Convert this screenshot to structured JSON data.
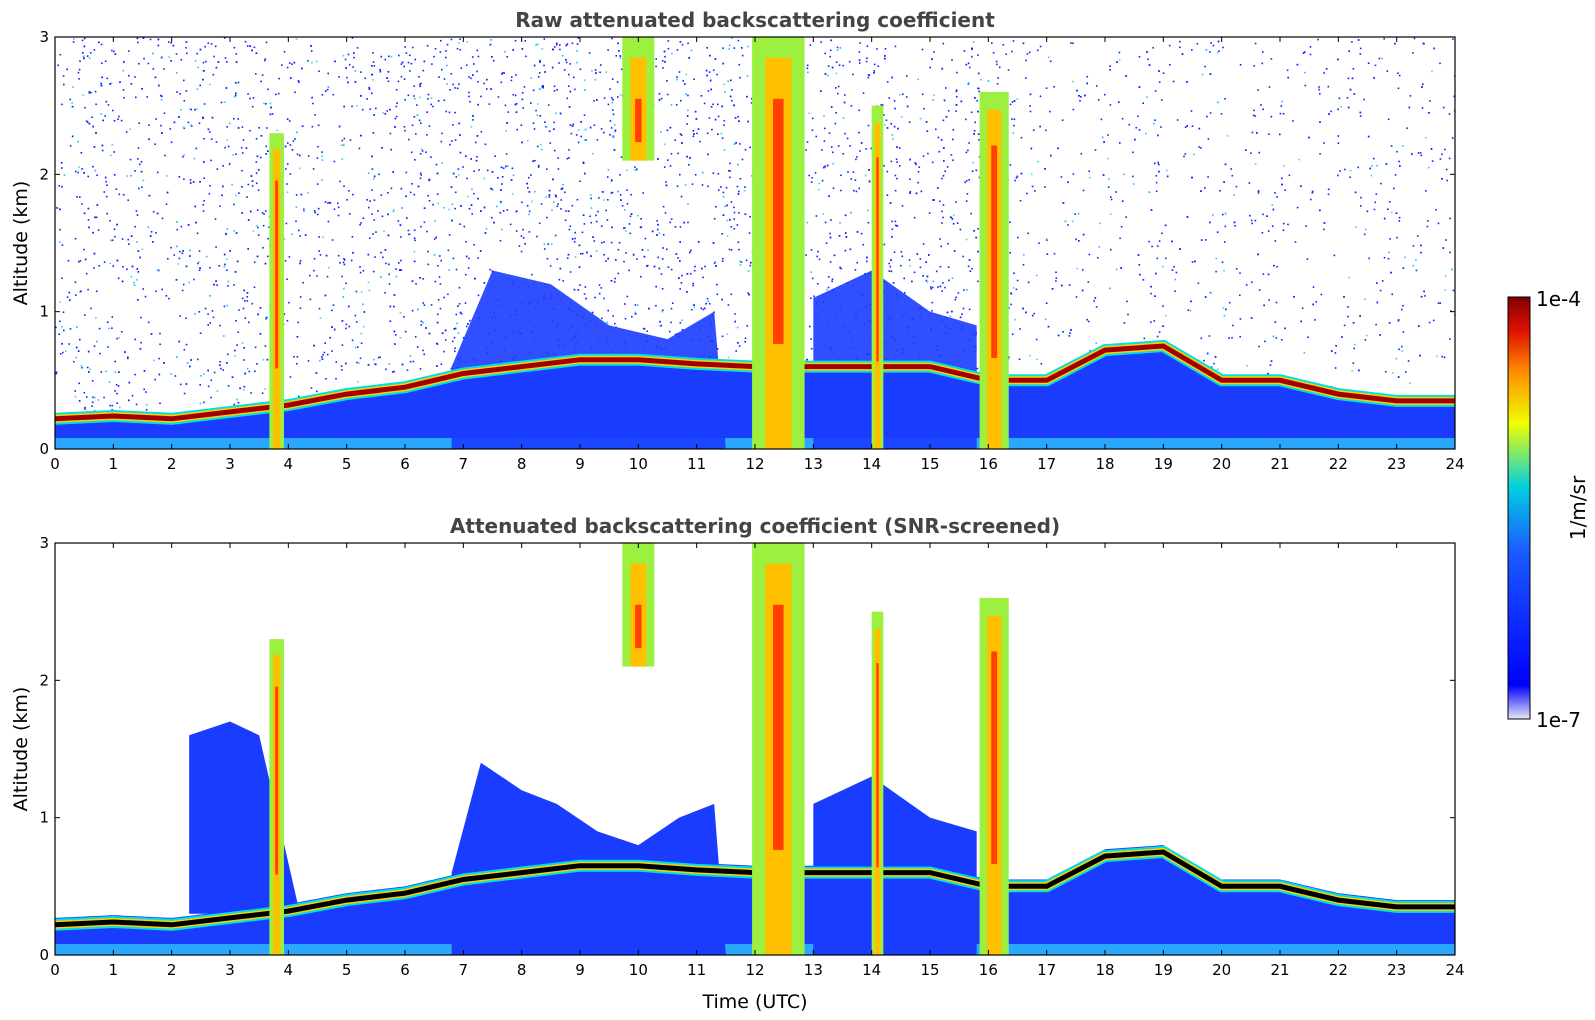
{
  "chart_data": [
    {
      "type": "heatmap",
      "title": "Raw attenuated backscattering coefficient",
      "xlabel": "",
      "ylabel": "Altitude (km)",
      "xlim": [
        0,
        24
      ],
      "ylim": [
        0,
        3
      ],
      "xticks": [
        "0",
        "1",
        "2",
        "3",
        "4",
        "5",
        "6",
        "7",
        "8",
        "9",
        "10",
        "11",
        "12",
        "13",
        "14",
        "15",
        "16",
        "17",
        "18",
        "19",
        "20",
        "21",
        "22",
        "23",
        "24"
      ],
      "yticks": [
        "0",
        "1",
        "2",
        "3"
      ],
      "grid": false,
      "screened": false,
      "layers": [
        {
          "name": "boundary-layer",
          "points": [
            [
              0,
              0.22
            ],
            [
              1,
              0.24
            ],
            [
              2,
              0.22
            ],
            [
              3,
              0.27
            ],
            [
              4,
              0.32
            ],
            [
              5,
              0.4
            ],
            [
              6,
              0.45
            ],
            [
              7,
              0.55
            ],
            [
              8,
              0.6
            ],
            [
              9,
              0.65
            ],
            [
              10,
              0.65
            ],
            [
              11,
              0.62
            ],
            [
              12,
              0.6
            ],
            [
              13,
              0.6
            ],
            [
              14,
              0.6
            ],
            [
              15,
              0.6
            ],
            [
              16,
              0.5
            ],
            [
              17,
              0.5
            ],
            [
              18,
              0.72
            ],
            [
              19,
              0.75
            ],
            [
              20,
              0.5
            ],
            [
              21,
              0.5
            ],
            [
              22,
              0.4
            ],
            [
              23,
              0.35
            ],
            [
              24,
              0.35
            ]
          ]
        }
      ],
      "columns": [
        {
          "t": 3.8,
          "top": 2.3,
          "width": 0.25
        },
        {
          "t": 10.0,
          "top": 3.0,
          "bottom": 2.1,
          "width": 0.55
        },
        {
          "t": 12.4,
          "top": 3.0,
          "width": 0.9
        },
        {
          "t": 16.1,
          "top": 2.6,
          "width": 0.5
        },
        {
          "t": 14.1,
          "top": 2.5,
          "width": 0.2
        }
      ]
    },
    {
      "type": "heatmap",
      "title": "Attenuated backscattering coefficient (SNR-screened)",
      "xlabel": "Time (UTC)",
      "ylabel": "Altitude (km)",
      "xlim": [
        0,
        24
      ],
      "ylim": [
        0,
        3
      ],
      "xticks": [
        "0",
        "1",
        "2",
        "3",
        "4",
        "5",
        "6",
        "7",
        "8",
        "9",
        "10",
        "11",
        "12",
        "13",
        "14",
        "15",
        "16",
        "17",
        "18",
        "19",
        "20",
        "21",
        "22",
        "23",
        "24"
      ],
      "yticks": [
        "0",
        "1",
        "2",
        "3"
      ],
      "grid": false,
      "screened": true,
      "layers": [
        {
          "name": "boundary-layer",
          "points": [
            [
              0,
              0.22
            ],
            [
              1,
              0.24
            ],
            [
              2,
              0.22
            ],
            [
              3,
              0.27
            ],
            [
              4,
              0.32
            ],
            [
              5,
              0.4
            ],
            [
              6,
              0.45
            ],
            [
              7,
              0.55
            ],
            [
              8,
              0.6
            ],
            [
              9,
              0.65
            ],
            [
              10,
              0.65
            ],
            [
              11,
              0.62
            ],
            [
              12,
              0.6
            ],
            [
              13,
              0.6
            ],
            [
              14,
              0.6
            ],
            [
              15,
              0.6
            ],
            [
              16,
              0.5
            ],
            [
              17,
              0.5
            ],
            [
              18,
              0.72
            ],
            [
              19,
              0.75
            ],
            [
              20,
              0.5
            ],
            [
              21,
              0.5
            ],
            [
              22,
              0.4
            ],
            [
              23,
              0.35
            ],
            [
              24,
              0.35
            ]
          ]
        }
      ],
      "columns": [
        {
          "t": 3.8,
          "top": 2.3,
          "width": 0.25
        },
        {
          "t": 10.0,
          "top": 3.0,
          "bottom": 2.1,
          "width": 0.55
        },
        {
          "t": 12.4,
          "top": 3.0,
          "width": 0.9
        },
        {
          "t": 16.1,
          "top": 2.6,
          "width": 0.5
        },
        {
          "t": 14.1,
          "top": 2.5,
          "width": 0.2
        }
      ]
    }
  ],
  "colorbar": {
    "min_label": "1e-7",
    "max_label": "1e-4",
    "unit_label": "1/m/sr",
    "scale": "log",
    "colors": [
      "#e6e6f5",
      "#0000ff",
      "#00bfff",
      "#00e0a0",
      "#ffff00",
      "#ff8000",
      "#ff2000",
      "#800000"
    ]
  }
}
